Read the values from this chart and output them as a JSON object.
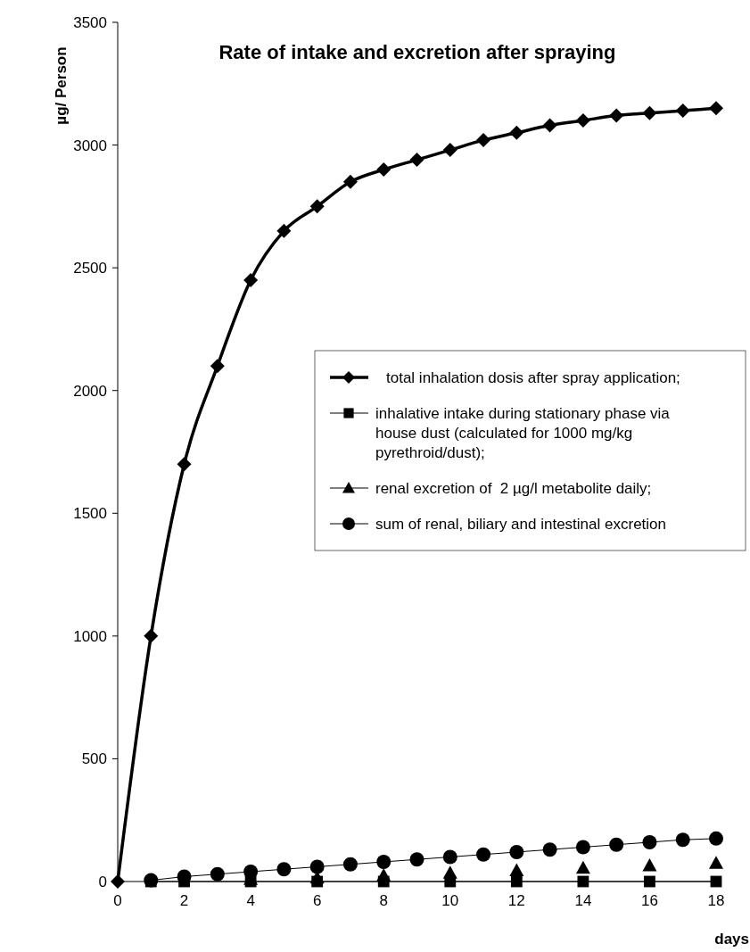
{
  "chart_data": {
    "type": "line",
    "title": "Rate of intake and excretion after spraying",
    "xlabel": "days",
    "ylabel": "µg/ Person",
    "xlim": [
      0,
      18
    ],
    "xticks": [
      0,
      2,
      4,
      6,
      8,
      10,
      12,
      14,
      16,
      18
    ],
    "ylim": [
      0,
      3500
    ],
    "yticks": [
      0,
      500,
      1000,
      1500,
      2000,
      2500,
      3000,
      3500
    ],
    "grid": false,
    "legend": "right",
    "series": [
      {
        "name": "total inhalation dosis after spray application;",
        "color": "#000000",
        "marker": "diamond",
        "x": [
          0,
          1,
          2,
          3,
          4,
          5,
          6,
          7,
          8,
          9,
          10,
          11,
          12,
          13,
          14,
          15,
          16,
          17,
          18
        ],
        "values": [
          0,
          1000,
          1700,
          2100,
          2450,
          2650,
          2750,
          2850,
          2900,
          2940,
          2980,
          3020,
          3050,
          3080,
          3100,
          3120,
          3130,
          3140,
          3150
        ]
      },
      {
        "name": "inhalative intake during stationary phase via house dust (calculated for 1000 mg/kg pyrethroid/dust);",
        "color": "#000000",
        "marker": "square",
        "x": [
          1,
          2,
          4,
          6,
          8,
          10,
          12,
          14,
          16,
          18
        ],
        "values": [
          0,
          0,
          0,
          0,
          0,
          0,
          0,
          0,
          0,
          0
        ]
      },
      {
        "name": "renal excretion of  2 µg/l metabolite daily;",
        "color": "#000000",
        "marker": "triangle",
        "type": "scatter",
        "x": [
          4,
          6,
          8,
          10,
          12,
          14,
          16,
          18
        ],
        "values": [
          10,
          15,
          25,
          35,
          45,
          55,
          65,
          75
        ]
      },
      {
        "name": "sum of renal, biliary and intestinal excretion",
        "color": "#000000",
        "marker": "circle",
        "x": [
          1,
          2,
          3,
          4,
          5,
          6,
          7,
          8,
          9,
          10,
          11,
          12,
          13,
          14,
          15,
          16,
          17,
          18
        ],
        "values": [
          5,
          20,
          30,
          40,
          50,
          60,
          70,
          80,
          90,
          100,
          110,
          120,
          130,
          140,
          150,
          160,
          170,
          175
        ]
      }
    ]
  }
}
